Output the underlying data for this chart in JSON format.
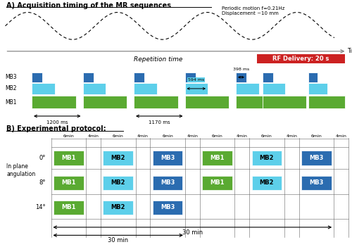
{
  "title_a": "A) Acquisition timing of the MR sequences",
  "title_b": "B) Experimental protocol:",
  "color_mb1": "#5aaa32",
  "color_mb2": "#5dcfea",
  "color_mb3": "#2b6cb0",
  "color_rf": "#cc2222",
  "sine_note": "Periodic motion f=0.21Hz\nDisplacement ~10 mm",
  "time_label": "Time",
  "repetition_label": "Repetition time",
  "rf_label": "RF Delivery: 20 s",
  "label_1200": "1200 ms",
  "label_1170": "1170 ms",
  "label_594": "594 ms",
  "label_398": "398 ms",
  "row_labels_b": [
    "0°",
    "8°",
    "14°"
  ],
  "left_label_b": "In plane\nangulation",
  "time_col_labels": [
    "6min",
    "4min",
    "6min",
    "4min",
    "6min",
    "4min",
    "6min",
    "4min",
    "6min",
    "4min",
    "6min",
    "4min"
  ],
  "arrow_30min_label": "30 min"
}
